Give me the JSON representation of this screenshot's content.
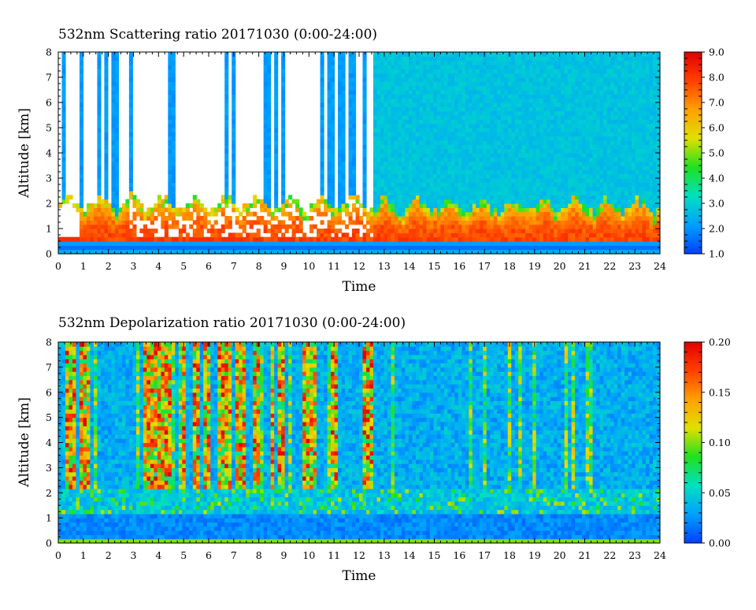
{
  "chart_data": [
    {
      "type": "heatmap",
      "title": "532nm Scattering ratio  20171030 (0:00-24:00)",
      "xlabel": "Time",
      "ylabel": "Altitude [km]",
      "xlim": [
        0,
        24
      ],
      "ylim": [
        0,
        8
      ],
      "x_ticks": [
        "0",
        "1",
        "2",
        "3",
        "4",
        "5",
        "6",
        "7",
        "8",
        "9",
        "10",
        "11",
        "12",
        "13",
        "14",
        "15",
        "16",
        "17",
        "18",
        "19",
        "20",
        "21",
        "22",
        "23",
        "24"
      ],
      "y_ticks": [
        "0",
        "1",
        "2",
        "3",
        "4",
        "5",
        "6",
        "7",
        "8"
      ],
      "colorbar": {
        "range": [
          1.0,
          9.0
        ],
        "ticks": [
          "1.0",
          "2.0",
          "3.0",
          "4.0",
          "5.0",
          "6.0",
          "7.0",
          "8.0",
          "9.0"
        ],
        "colors": [
          "#0040ff",
          "#00a0ff",
          "#00e0c0",
          "#20e020",
          "#e0e000",
          "#ffa000",
          "#ff4000",
          "#e00000"
        ]
      },
      "features": {
        "cloud_layer_km": [
          0.5,
          2.3
        ],
        "clear_gap_hours": [
          [
            3.0,
            8.0
          ],
          [
            8.3,
            10.3
          ]
        ],
        "background": "#0090ff"
      }
    },
    {
      "type": "heatmap",
      "title": "532nm Depolarization ratio  20171030 (0:00-24:00)",
      "xlabel": "Time",
      "ylabel": "Altitude [km]",
      "xlim": [
        0,
        24
      ],
      "ylim": [
        0,
        8
      ],
      "x_ticks": [
        "0",
        "1",
        "2",
        "3",
        "4",
        "5",
        "6",
        "7",
        "8",
        "9",
        "10",
        "11",
        "12",
        "13",
        "14",
        "15",
        "16",
        "17",
        "18",
        "19",
        "20",
        "21",
        "22",
        "23",
        "24"
      ],
      "y_ticks": [
        "0",
        "1",
        "2",
        "3",
        "4",
        "5",
        "6",
        "7",
        "8"
      ],
      "colorbar": {
        "range": [
          0.0,
          0.2
        ],
        "ticks": [
          "0.00",
          "0.05",
          "0.10",
          "0.15",
          "0.20"
        ],
        "colors": [
          "#0040ff",
          "#00a0ff",
          "#00e0c0",
          "#20e020",
          "#e0e000",
          "#ffa000",
          "#ff4000",
          "#e00000"
        ]
      },
      "features": {
        "noisy_columns_hours": [
          [
            0.3,
            1.2
          ],
          [
            3.2,
            4.5
          ],
          [
            5.0,
            6.0
          ],
          [
            6.3,
            8.0
          ],
          [
            8.5,
            9.0
          ],
          [
            9.7,
            10.3
          ],
          [
            10.7,
            11.2
          ],
          [
            12.2,
            12.6
          ]
        ],
        "background": "#2a7fff"
      }
    }
  ]
}
